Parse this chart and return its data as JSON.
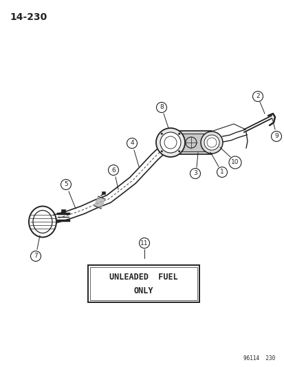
{
  "title": "14-230",
  "background_color": "#ffffff",
  "text_color": "#222222",
  "page_num": "96114  230",
  "unleaded_text_line1": "UNLEADED  FUEL",
  "unleaded_text_line2": "ONLY",
  "figsize": [
    4.14,
    5.33
  ],
  "dpi": 100
}
